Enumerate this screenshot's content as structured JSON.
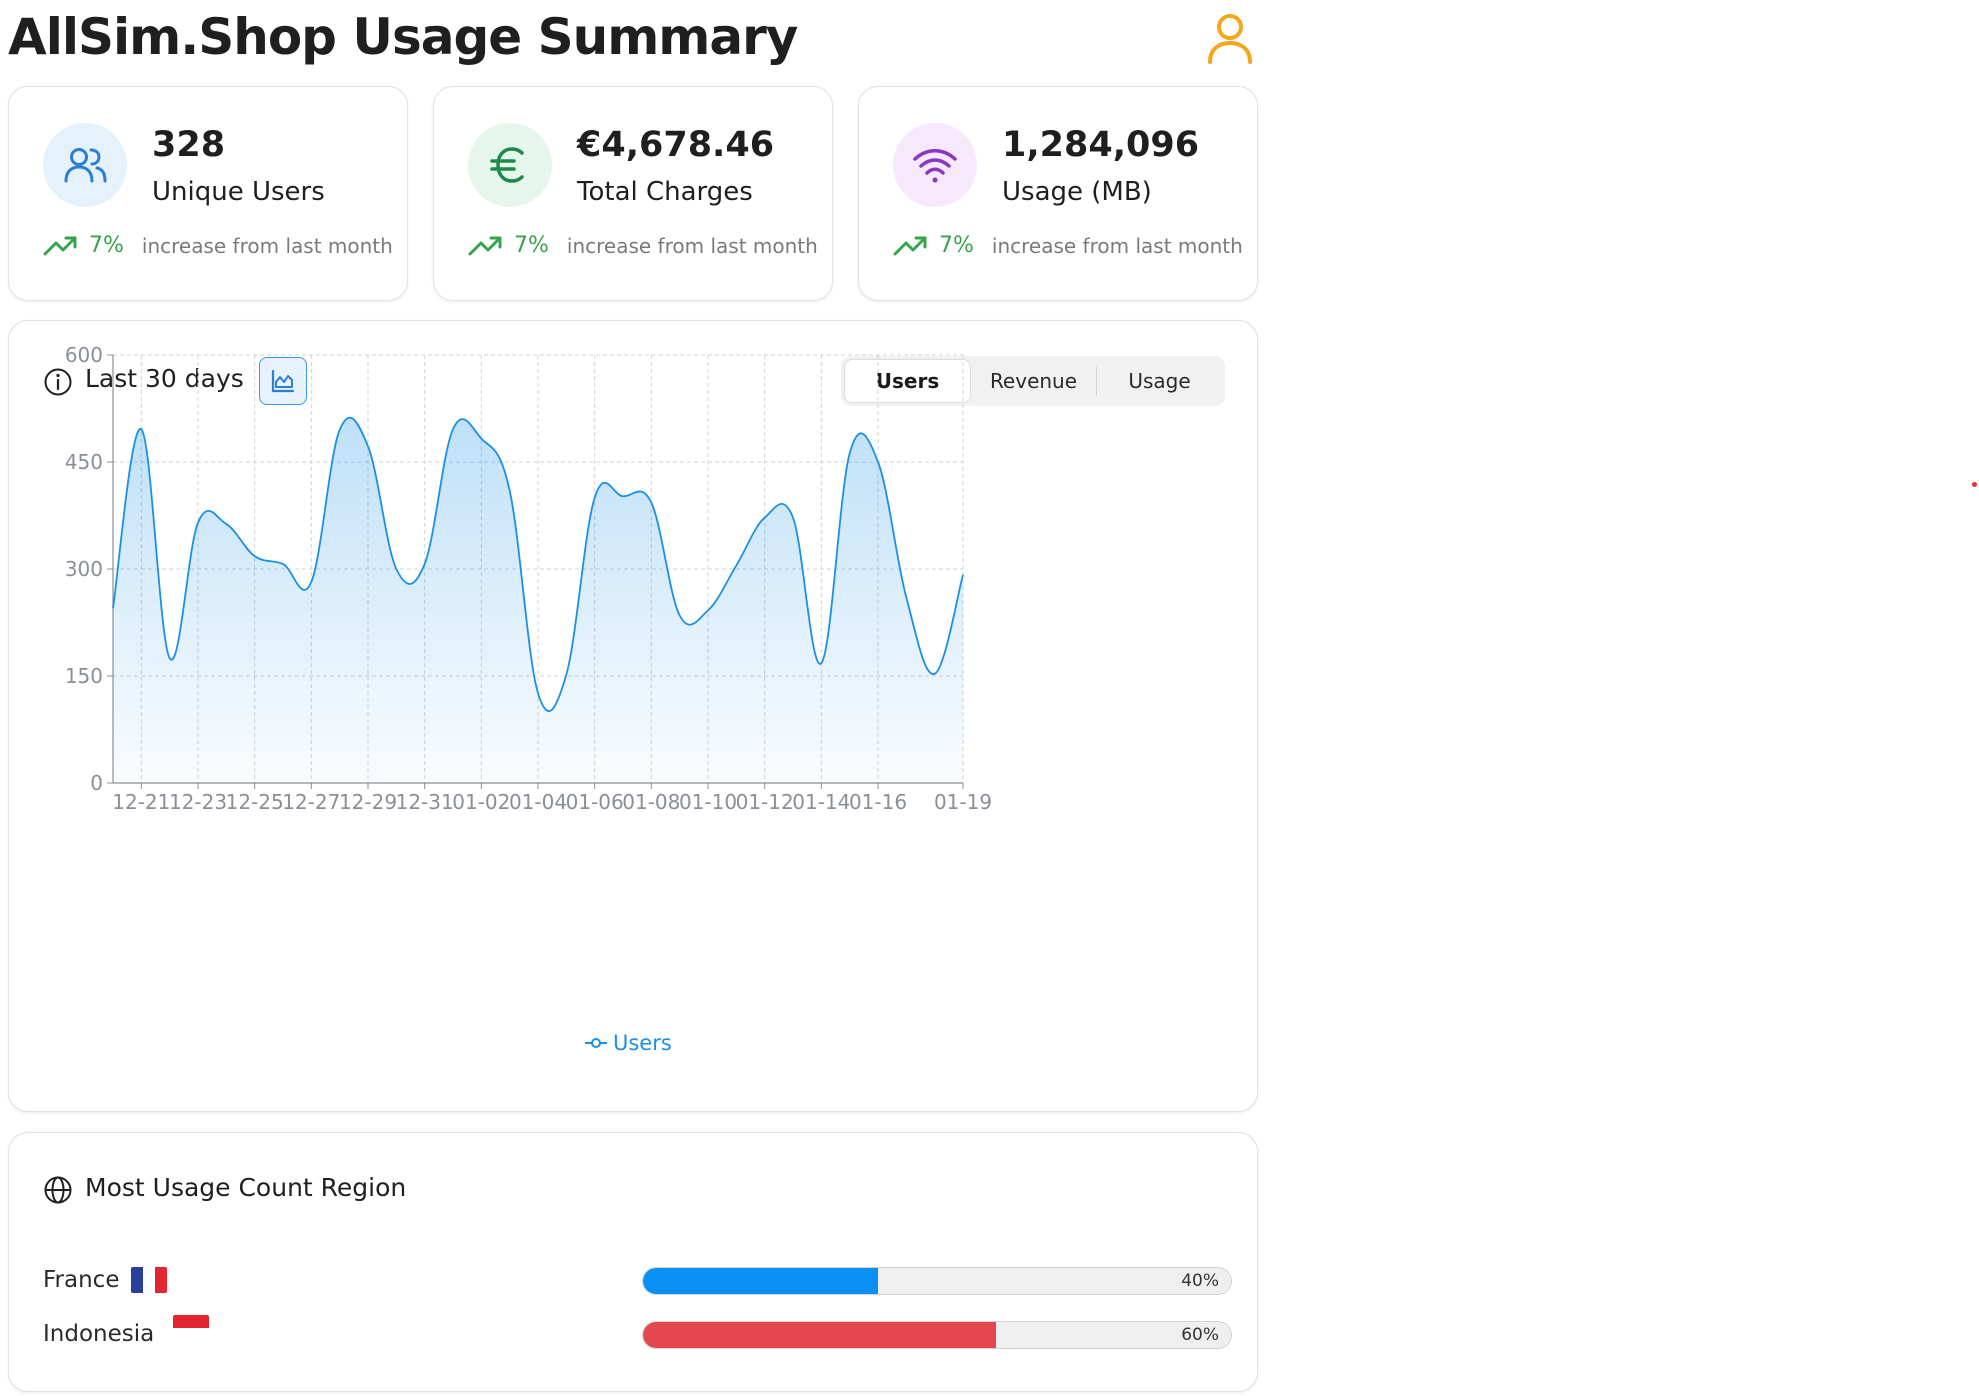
{
  "header": {
    "title": "AllSim.Shop Usage Summary",
    "accent_color": "#f4a71d"
  },
  "stats": [
    {
      "icon": "users-icon",
      "value": "328",
      "label": "Unique Users",
      "trend_pct": "7%",
      "trend_text": "increase from last month",
      "icon_bg": "#e6f2fb",
      "icon_color": "#2a7fd4"
    },
    {
      "icon": "euro-icon",
      "value": "€4,678.46",
      "label": "Total Charges",
      "trend_pct": "7%",
      "trend_text": "increase from last month",
      "icon_bg": "#e6f6ec",
      "icon_color": "#1e8a4a"
    },
    {
      "icon": "wifi-icon",
      "value": "1,284,096",
      "label": "Usage (MB)",
      "trend_pct": "7%",
      "trend_text": "increase from last month",
      "icon_bg": "#f5e9fb",
      "icon_color": "#8a35c4"
    }
  ],
  "chart_section": {
    "title": "Last 30 days",
    "tabs": [
      {
        "label": "Users",
        "active": true
      },
      {
        "label": "Revenue",
        "active": false
      },
      {
        "label": "Usage",
        "active": false
      }
    ]
  },
  "chart_data": {
    "type": "area",
    "title": "",
    "xlabel": "",
    "ylabel": "",
    "ylim": [
      0,
      600
    ],
    "yticks": [
      0,
      150,
      300,
      450,
      600
    ],
    "x": [
      "12-20",
      "12-21",
      "12-22",
      "12-23",
      "12-24",
      "12-25",
      "12-26",
      "12-27",
      "12-28",
      "12-29",
      "12-30",
      "12-31",
      "01-01",
      "01-02",
      "01-03",
      "01-04",
      "01-05",
      "01-06",
      "01-07",
      "01-08",
      "01-09",
      "01-10",
      "01-11",
      "01-12",
      "01-13",
      "01-14",
      "01-15",
      "01-16",
      "01-17",
      "01-18",
      "01-19"
    ],
    "xtick_labels": [
      "12-21",
      "12-23",
      "12-25",
      "12-27",
      "12-29",
      "12-31",
      "01-02",
      "01-04",
      "01-06",
      "01-08",
      "01-10",
      "01-12",
      "01-14",
      "01-16",
      "01-19"
    ],
    "series": [
      {
        "name": "Users",
        "color": "#1a90e6",
        "values": [
          245,
          496,
          175,
          365,
          363,
          318,
          307,
          282,
          495,
          472,
          300,
          307,
          496,
          483,
          410,
          126,
          152,
          400,
          402,
          393,
          235,
          242,
          305,
          372,
          372,
          168,
          462,
          450,
          260,
          153,
          292
        ]
      }
    ],
    "legend": "bottom-center",
    "grid": true
  },
  "regions": {
    "title": "Most Usage Count Region",
    "items": [
      {
        "name": "France",
        "percent": 40,
        "percent_label": "40%",
        "bar_color": "#0a8ff5",
        "flag": "france-flag-icon"
      },
      {
        "name": "Indonesia",
        "percent": 60,
        "percent_label": "60%",
        "bar_color": "#e5474f",
        "flag": "indonesia-flag-icon"
      }
    ]
  }
}
